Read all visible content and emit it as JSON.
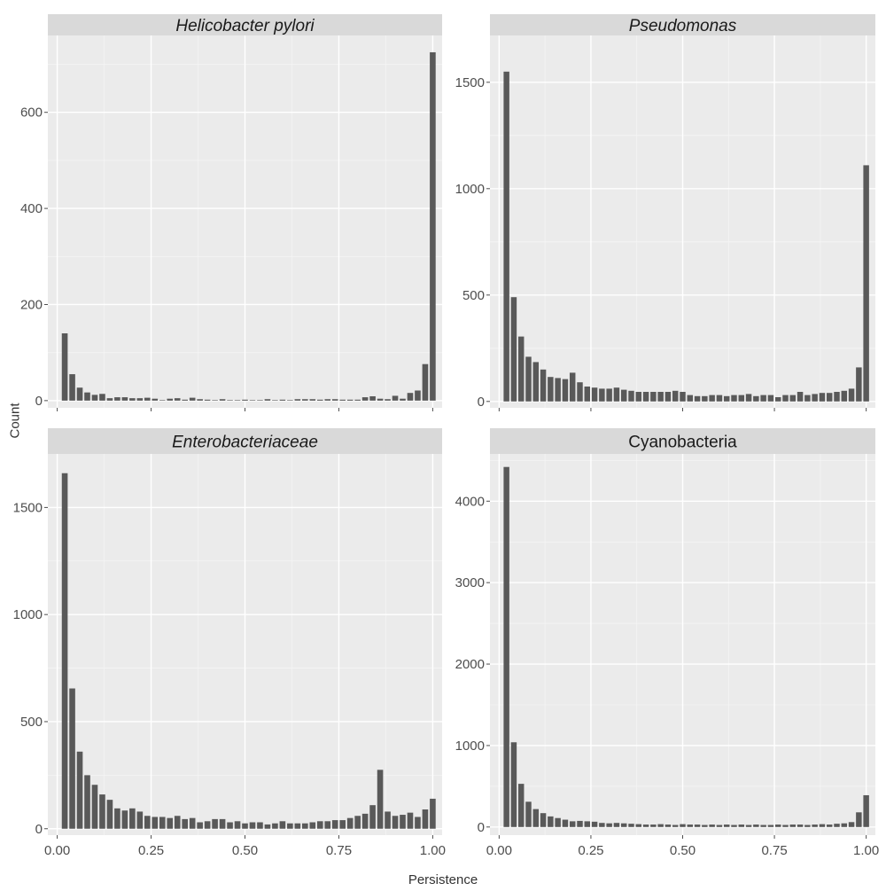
{
  "figure": {
    "xlabel": "Persistence",
    "ylabel": "Count"
  },
  "chart_data": [
    {
      "type": "bar",
      "title": "Helicobacter pylori",
      "title_style": "italic",
      "x_ticks": [
        "0.00",
        "0.25",
        "0.50",
        "0.75",
        "1.00"
      ],
      "y_ticks": [
        "0",
        "200",
        "400",
        "600"
      ],
      "xlim": [
        -0.025,
        1.025
      ],
      "ylim": [
        -15,
        760
      ],
      "bin_width": 0.02,
      "x": [
        0.02,
        0.04,
        0.06,
        0.08,
        0.1,
        0.12,
        0.14,
        0.16,
        0.18,
        0.2,
        0.22,
        0.24,
        0.26,
        0.28,
        0.3,
        0.32,
        0.34,
        0.36,
        0.38,
        0.4,
        0.42,
        0.44,
        0.46,
        0.48,
        0.5,
        0.52,
        0.54,
        0.56,
        0.58,
        0.6,
        0.62,
        0.64,
        0.66,
        0.68,
        0.7,
        0.72,
        0.74,
        0.76,
        0.78,
        0.8,
        0.82,
        0.84,
        0.86,
        0.88,
        0.9,
        0.92,
        0.94,
        0.96,
        0.98,
        1.0
      ],
      "values": [
        140,
        55,
        27,
        17,
        12,
        14,
        5,
        7,
        7,
        5,
        5,
        6,
        4,
        1,
        4,
        5,
        2,
        6,
        3,
        2,
        1,
        3,
        1,
        1,
        2,
        1,
        1,
        3,
        1,
        2,
        1,
        3,
        3,
        3,
        2,
        3,
        3,
        2,
        2,
        2,
        7,
        9,
        4,
        3,
        10,
        4,
        16,
        21,
        76,
        725
      ],
      "bar_color": "#595959",
      "panel_background": "#ebebeb",
      "grid": true
    },
    {
      "type": "bar",
      "title": "Pseudomonas",
      "title_style": "italic",
      "x_ticks": [
        "0.00",
        "0.25",
        "0.50",
        "0.75",
        "1.00"
      ],
      "y_ticks": [
        "0",
        "500",
        "1000",
        "1500"
      ],
      "xlim": [
        -0.025,
        1.025
      ],
      "ylim": [
        -30,
        1720
      ],
      "bin_width": 0.02,
      "x": [
        0.02,
        0.04,
        0.06,
        0.08,
        0.1,
        0.12,
        0.14,
        0.16,
        0.18,
        0.2,
        0.22,
        0.24,
        0.26,
        0.28,
        0.3,
        0.32,
        0.34,
        0.36,
        0.38,
        0.4,
        0.42,
        0.44,
        0.46,
        0.48,
        0.5,
        0.52,
        0.54,
        0.56,
        0.58,
        0.6,
        0.62,
        0.64,
        0.66,
        0.68,
        0.7,
        0.72,
        0.74,
        0.76,
        0.78,
        0.8,
        0.82,
        0.84,
        0.86,
        0.88,
        0.9,
        0.92,
        0.94,
        0.96,
        0.98,
        1.0
      ],
      "values": [
        1550,
        490,
        305,
        210,
        185,
        150,
        115,
        110,
        105,
        135,
        90,
        70,
        65,
        60,
        60,
        65,
        55,
        50,
        45,
        45,
        45,
        45,
        45,
        50,
        45,
        30,
        25,
        25,
        30,
        30,
        25,
        30,
        30,
        35,
        25,
        30,
        30,
        20,
        30,
        30,
        45,
        30,
        35,
        40,
        40,
        45,
        50,
        60,
        160,
        1110
      ],
      "bar_color": "#595959",
      "panel_background": "#ebebeb",
      "grid": true
    },
    {
      "type": "bar",
      "title": "Enterobacteriaceae",
      "title_style": "italic",
      "x_ticks": [
        "0.00",
        "0.25",
        "0.50",
        "0.75",
        "1.00"
      ],
      "y_ticks": [
        "0",
        "500",
        "1000",
        "1500"
      ],
      "xlim": [
        -0.025,
        1.025
      ],
      "ylim": [
        -30,
        1750
      ],
      "bin_width": 0.02,
      "x": [
        0.02,
        0.04,
        0.06,
        0.08,
        0.1,
        0.12,
        0.14,
        0.16,
        0.18,
        0.2,
        0.22,
        0.24,
        0.26,
        0.28,
        0.3,
        0.32,
        0.34,
        0.36,
        0.38,
        0.4,
        0.42,
        0.44,
        0.46,
        0.48,
        0.5,
        0.52,
        0.54,
        0.56,
        0.58,
        0.6,
        0.62,
        0.64,
        0.66,
        0.68,
        0.7,
        0.72,
        0.74,
        0.76,
        0.78,
        0.8,
        0.82,
        0.84,
        0.86,
        0.88,
        0.9,
        0.92,
        0.94,
        0.96,
        0.98,
        1.0
      ],
      "values": [
        1660,
        655,
        360,
        250,
        205,
        160,
        135,
        95,
        85,
        95,
        80,
        60,
        55,
        55,
        50,
        60,
        45,
        50,
        30,
        35,
        45,
        45,
        30,
        35,
        25,
        30,
        30,
        20,
        25,
        35,
        25,
        25,
        25,
        30,
        35,
        35,
        40,
        40,
        50,
        60,
        70,
        110,
        275,
        80,
        60,
        65,
        75,
        55,
        90,
        140
      ],
      "bar_color": "#595959",
      "panel_background": "#ebebeb",
      "grid": true
    },
    {
      "type": "bar",
      "title": "Cyanobacteria",
      "title_style": "normal",
      "x_ticks": [
        "0.00",
        "0.25",
        "0.50",
        "0.75",
        "1.00"
      ],
      "y_ticks": [
        "0",
        "1000",
        "2000",
        "3000",
        "4000"
      ],
      "xlim": [
        -0.025,
        1.025
      ],
      "ylim": [
        -100,
        4580
      ],
      "bin_width": 0.02,
      "x": [
        0.02,
        0.04,
        0.06,
        0.08,
        0.1,
        0.12,
        0.14,
        0.16,
        0.18,
        0.2,
        0.22,
        0.24,
        0.26,
        0.28,
        0.3,
        0.32,
        0.34,
        0.36,
        0.38,
        0.4,
        0.42,
        0.44,
        0.46,
        0.48,
        0.5,
        0.52,
        0.54,
        0.56,
        0.58,
        0.6,
        0.62,
        0.64,
        0.66,
        0.68,
        0.7,
        0.72,
        0.74,
        0.76,
        0.78,
        0.8,
        0.82,
        0.84,
        0.86,
        0.88,
        0.9,
        0.92,
        0.94,
        0.96,
        0.98,
        1.0
      ],
      "values": [
        4420,
        1040,
        530,
        310,
        220,
        170,
        130,
        110,
        90,
        70,
        75,
        70,
        65,
        50,
        45,
        50,
        45,
        40,
        35,
        30,
        30,
        35,
        30,
        25,
        35,
        30,
        30,
        25,
        30,
        25,
        30,
        25,
        30,
        25,
        30,
        25,
        25,
        30,
        25,
        30,
        30,
        25,
        30,
        35,
        30,
        40,
        45,
        60,
        180,
        390
      ],
      "bar_color": "#595959",
      "panel_background": "#ebebeb",
      "grid": true
    }
  ]
}
